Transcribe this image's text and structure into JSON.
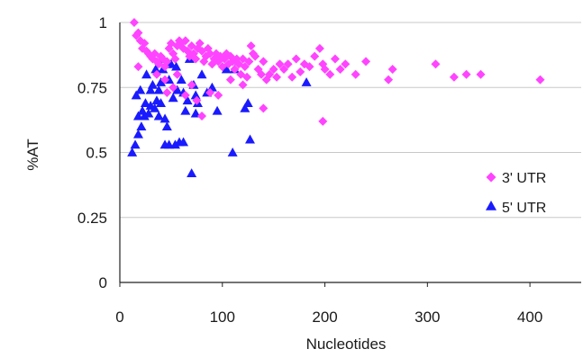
{
  "chart_data": {
    "type": "scatter",
    "xlabel": "Nucleotides",
    "ylabel": "%AT",
    "xlim": [
      0,
      450
    ],
    "ylim": [
      0,
      1
    ],
    "x_ticks": [
      "0",
      "100",
      "200",
      "300",
      "400"
    ],
    "x_tick_values": [
      0,
      100,
      200,
      300,
      400
    ],
    "y_ticks": [
      "0",
      "0.25",
      "0.5",
      "0.75",
      "1"
    ],
    "y_tick_values": [
      0,
      0.25,
      0.5,
      0.75,
      1
    ],
    "grid": "horizontal",
    "legend_position": "right",
    "series": [
      {
        "name": "3' UTR",
        "marker": "diamond",
        "color": "#ff44ff",
        "points": [
          [
            14,
            1.0
          ],
          [
            16,
            0.95
          ],
          [
            18,
            0.96
          ],
          [
            20,
            0.93
          ],
          [
            22,
            0.9
          ],
          [
            24,
            0.92
          ],
          [
            26,
            0.89
          ],
          [
            28,
            0.88
          ],
          [
            30,
            0.87
          ],
          [
            32,
            0.86
          ],
          [
            34,
            0.88
          ],
          [
            36,
            0.85
          ],
          [
            38,
            0.84
          ],
          [
            40,
            0.87
          ],
          [
            42,
            0.86
          ],
          [
            44,
            0.83
          ],
          [
            46,
            0.85
          ],
          [
            48,
            0.9
          ],
          [
            50,
            0.92
          ],
          [
            52,
            0.88
          ],
          [
            54,
            0.86
          ],
          [
            56,
            0.91
          ],
          [
            58,
            0.93
          ],
          [
            60,
            0.92
          ],
          [
            62,
            0.9
          ],
          [
            64,
            0.93
          ],
          [
            66,
            0.89
          ],
          [
            68,
            0.87
          ],
          [
            70,
            0.91
          ],
          [
            72,
            0.88
          ],
          [
            74,
            0.86
          ],
          [
            76,
            0.9
          ],
          [
            78,
            0.92
          ],
          [
            80,
            0.89
          ],
          [
            82,
            0.85
          ],
          [
            84,
            0.87
          ],
          [
            86,
            0.9
          ],
          [
            88,
            0.88
          ],
          [
            90,
            0.84
          ],
          [
            92,
            0.86
          ],
          [
            94,
            0.88
          ],
          [
            96,
            0.85
          ],
          [
            98,
            0.87
          ],
          [
            100,
            0.83
          ],
          [
            102,
            0.86
          ],
          [
            104,
            0.88
          ],
          [
            106,
            0.84
          ],
          [
            108,
            0.87
          ],
          [
            110,
            0.85
          ],
          [
            112,
            0.82
          ],
          [
            114,
            0.86
          ],
          [
            116,
            0.84
          ],
          [
            118,
            0.8
          ],
          [
            120,
            0.86
          ],
          [
            122,
            0.83
          ],
          [
            124,
            0.79
          ],
          [
            126,
            0.85
          ],
          [
            128,
            0.91
          ],
          [
            130,
            0.88
          ],
          [
            132,
            0.87
          ],
          [
            135,
            0.82
          ],
          [
            138,
            0.8
          ],
          [
            140,
            0.85
          ],
          [
            143,
            0.78
          ],
          [
            146,
            0.8
          ],
          [
            150,
            0.82
          ],
          [
            153,
            0.79
          ],
          [
            156,
            0.84
          ],
          [
            160,
            0.82
          ],
          [
            164,
            0.84
          ],
          [
            168,
            0.79
          ],
          [
            172,
            0.86
          ],
          [
            176,
            0.81
          ],
          [
            180,
            0.84
          ],
          [
            185,
            0.83
          ],
          [
            190,
            0.87
          ],
          [
            195,
            0.9
          ],
          [
            198,
            0.84
          ],
          [
            200,
            0.82
          ],
          [
            205,
            0.8
          ],
          [
            210,
            0.86
          ],
          [
            215,
            0.82
          ],
          [
            220,
            0.84
          ],
          [
            230,
            0.8
          ],
          [
            240,
            0.85
          ],
          [
            262,
            0.78
          ],
          [
            266,
            0.82
          ],
          [
            308,
            0.84
          ],
          [
            326,
            0.79
          ],
          [
            338,
            0.8
          ],
          [
            352,
            0.8
          ],
          [
            410,
            0.78
          ],
          [
            18,
            0.83
          ],
          [
            52,
            0.75
          ],
          [
            88,
            0.73
          ],
          [
            75,
            0.7
          ],
          [
            140,
            0.67
          ],
          [
            198,
            0.62
          ],
          [
            80,
            0.64
          ],
          [
            44,
            0.78
          ],
          [
            64,
            0.72
          ],
          [
            36,
            0.8
          ],
          [
            108,
            0.78
          ],
          [
            56,
            0.8
          ],
          [
            96,
            0.72
          ],
          [
            120,
            0.76
          ],
          [
            46,
            0.73
          ],
          [
            70,
            0.76
          ]
        ]
      },
      {
        "name": "5' UTR",
        "marker": "triangle",
        "color": "#1a1aff",
        "points": [
          [
            12,
            0.5
          ],
          [
            15,
            0.53
          ],
          [
            16,
            0.72
          ],
          [
            18,
            0.64
          ],
          [
            18,
            0.57
          ],
          [
            20,
            0.74
          ],
          [
            21,
            0.6
          ],
          [
            22,
            0.66
          ],
          [
            24,
            0.64
          ],
          [
            25,
            0.69
          ],
          [
            26,
            0.8
          ],
          [
            28,
            0.65
          ],
          [
            30,
            0.74
          ],
          [
            30,
            0.68
          ],
          [
            32,
            0.76
          ],
          [
            34,
            0.67
          ],
          [
            35,
            0.82
          ],
          [
            36,
            0.7
          ],
          [
            38,
            0.74
          ],
          [
            38,
            0.64
          ],
          [
            40,
            0.77
          ],
          [
            40,
            0.69
          ],
          [
            42,
            0.82
          ],
          [
            42,
            0.86
          ],
          [
            44,
            0.63
          ],
          [
            44,
            0.53
          ],
          [
            45,
            0.84
          ],
          [
            46,
            0.84
          ],
          [
            46,
            0.6
          ],
          [
            48,
            0.78
          ],
          [
            48,
            0.53
          ],
          [
            50,
            0.84
          ],
          [
            52,
            0.71
          ],
          [
            54,
            0.53
          ],
          [
            55,
            0.83
          ],
          [
            56,
            0.74
          ],
          [
            58,
            0.54
          ],
          [
            60,
            0.78
          ],
          [
            62,
            0.54
          ],
          [
            62,
            0.73
          ],
          [
            64,
            0.66
          ],
          [
            66,
            0.7
          ],
          [
            68,
            0.86
          ],
          [
            70,
            0.42
          ],
          [
            72,
            0.76
          ],
          [
            74,
            0.72
          ],
          [
            74,
            0.65
          ],
          [
            76,
            0.69
          ],
          [
            80,
            0.8
          ],
          [
            85,
            0.73
          ],
          [
            90,
            0.75
          ],
          [
            95,
            0.66
          ],
          [
            104,
            0.82
          ],
          [
            110,
            0.5
          ],
          [
            112,
            0.82
          ],
          [
            122,
            0.67
          ],
          [
            125,
            0.69
          ],
          [
            127,
            0.55
          ],
          [
            182,
            0.77
          ]
        ]
      }
    ]
  }
}
